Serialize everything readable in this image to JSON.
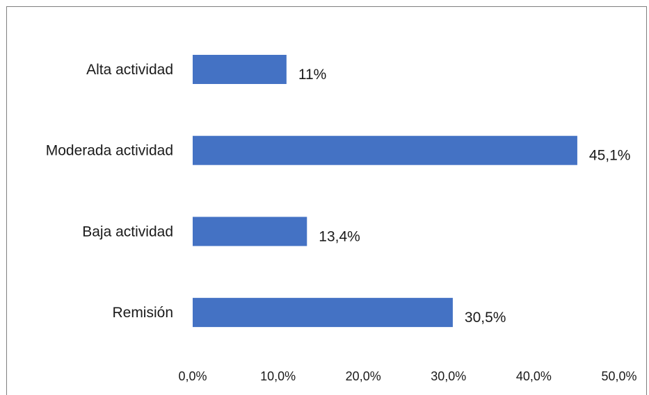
{
  "chart_data": {
    "type": "bar",
    "orientation": "horizontal",
    "categories": [
      "Alta actividad",
      "Moderada actividad",
      "Baja actividad",
      "Remisión"
    ],
    "values": [
      11.0,
      45.1,
      13.4,
      30.5
    ],
    "data_labels": [
      "11%",
      "45,1%",
      "13,4%",
      "30,5%"
    ],
    "xlim": [
      0,
      50
    ],
    "x_ticks": [
      0,
      10,
      20,
      30,
      40,
      50
    ],
    "x_tick_labels": [
      "0,0%",
      "10,0%",
      "20,0%",
      "30,0%",
      "40,0%",
      "50,0%"
    ],
    "grid": false,
    "bar_color": "#4472c4",
    "title": "",
    "xlabel": "",
    "ylabel": ""
  }
}
